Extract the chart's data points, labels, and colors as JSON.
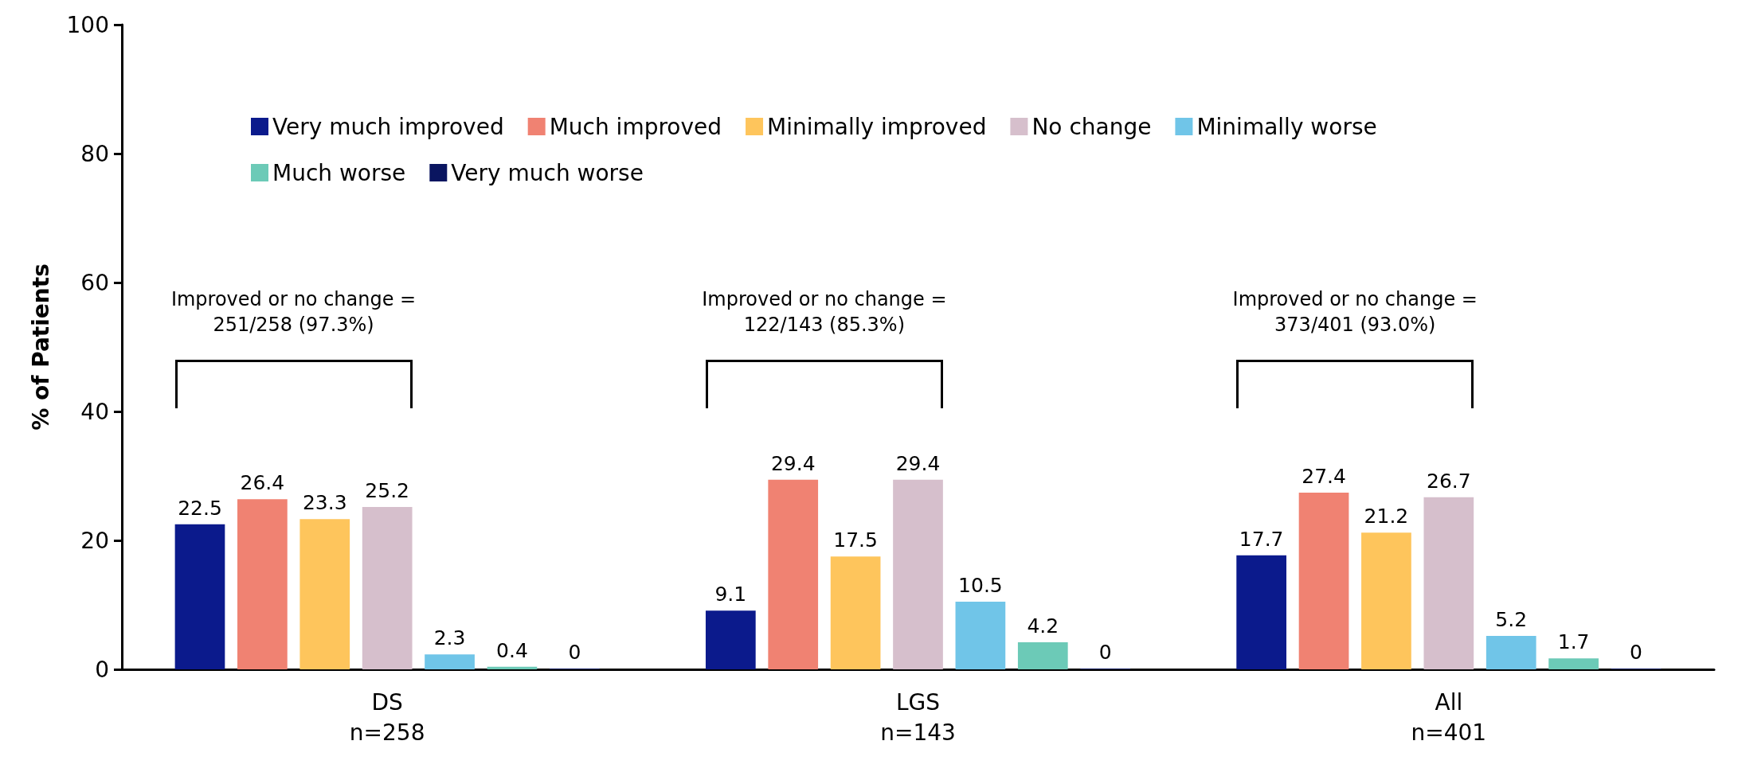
{
  "chart_data": {
    "type": "bar",
    "ylabel": "% of Patients",
    "categories": [
      "DS\nn=258",
      "LGS\nn=143",
      "All\nn=401"
    ],
    "series": [
      {
        "name": "Very much improved",
        "color": "#0b1a8c",
        "values": [
          22.5,
          9.1,
          17.7
        ]
      },
      {
        "name": "Much improved",
        "color": "#f08272",
        "values": [
          26.4,
          29.4,
          27.4
        ]
      },
      {
        "name": "Minimally improved",
        "color": "#fec55c",
        "values": [
          23.3,
          17.5,
          21.2
        ]
      },
      {
        "name": "No change",
        "color": "#d6bfcc",
        "values": [
          25.2,
          29.4,
          26.7
        ]
      },
      {
        "name": "Minimally worse",
        "color": "#70c5e8",
        "values": [
          2.3,
          10.5,
          5.2
        ]
      },
      {
        "name": "Much worse",
        "color": "#6ccab7",
        "values": [
          0.4,
          4.2,
          1.7
        ]
      },
      {
        "name": "Very much worse",
        "color": "#0a1560",
        "values": [
          0,
          0,
          0
        ]
      }
    ],
    "ylim": [
      0,
      100
    ],
    "yticks": [
      0,
      20,
      40,
      60,
      80,
      100
    ],
    "grid": false,
    "legend": "top",
    "data_labels": true,
    "annotations": [
      "Improved or no change =\n251/258 (97.3%)",
      "Improved or no change =\n122/143 (85.3%)",
      "Improved or no change =\n373/401 (93.0%)"
    ]
  }
}
